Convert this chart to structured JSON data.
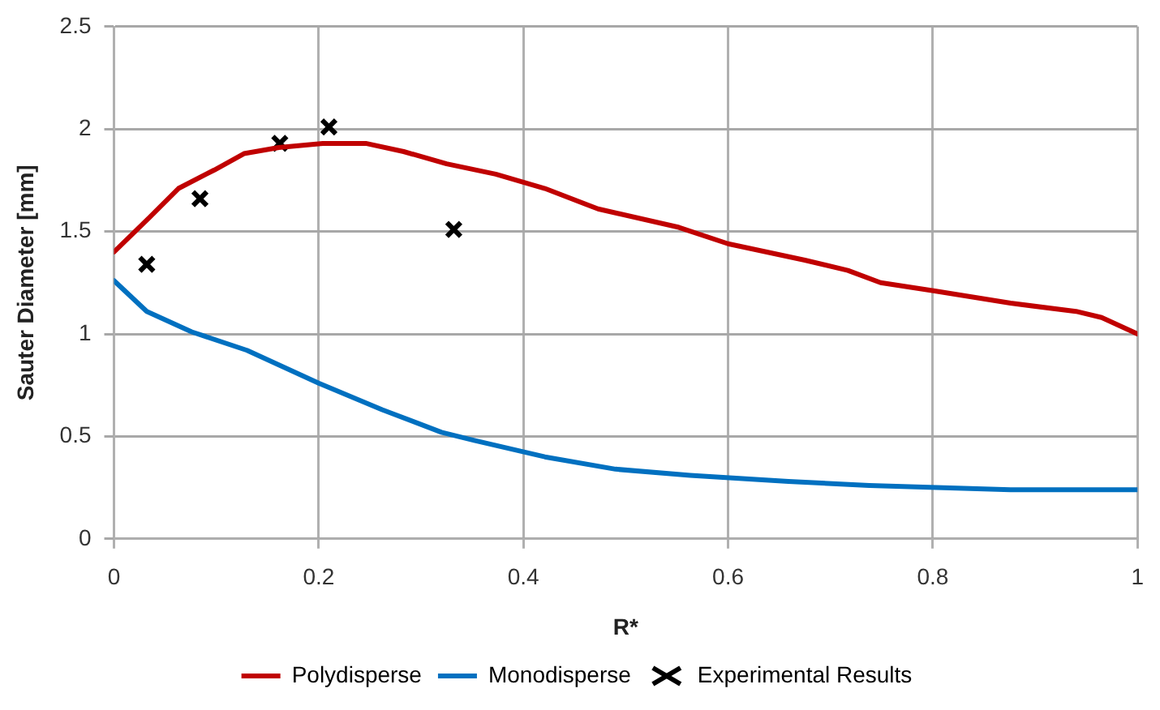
{
  "chart_data": {
    "type": "line",
    "xlabel": "R*",
    "ylabel": "Sauter Diameter [mm]",
    "xlim": [
      0,
      1
    ],
    "xticks": [
      0,
      0.2,
      0.4,
      0.6,
      0.8,
      1
    ],
    "ylim": [
      0,
      2.5
    ],
    "yticks": [
      0,
      0.5,
      1,
      1.5,
      2,
      2.5
    ],
    "grid": true,
    "legend": "bottom",
    "series": [
      {
        "name": "Polydisperse",
        "type": "line",
        "color": "#c00000",
        "marker": "none",
        "x": [
          0,
          0.035,
          0.063,
          0.098,
          0.127,
          0.161,
          0.204,
          0.246,
          0.283,
          0.325,
          0.373,
          0.421,
          0.473,
          0.552,
          0.6,
          0.675,
          0.717,
          0.749,
          0.802,
          0.876,
          0.94,
          0.965,
          1.0
        ],
        "values": [
          1.4,
          1.57,
          1.71,
          1.8,
          1.88,
          1.91,
          1.93,
          1.93,
          1.89,
          1.83,
          1.78,
          1.71,
          1.61,
          1.52,
          1.44,
          1.36,
          1.31,
          1.25,
          1.21,
          1.15,
          1.11,
          1.08,
          1.0
        ]
      },
      {
        "name": "Monodisperse",
        "type": "line",
        "color": "#0070c0",
        "marker": "none",
        "x": [
          0,
          0.032,
          0.076,
          0.13,
          0.2,
          0.262,
          0.32,
          0.352,
          0.421,
          0.49,
          0.563,
          0.659,
          0.738,
          0.876,
          1.0
        ],
        "values": [
          1.26,
          1.11,
          1.01,
          0.92,
          0.76,
          0.63,
          0.52,
          0.48,
          0.4,
          0.34,
          0.31,
          0.28,
          0.26,
          0.24,
          0.24
        ]
      },
      {
        "name": "Experimental Results",
        "type": "scatter",
        "color": "#000000",
        "marker": "cross",
        "x": [
          0.032,
          0.084,
          0.162,
          0.21,
          0.332
        ],
        "values": [
          1.34,
          1.66,
          1.93,
          2.01,
          1.51
        ]
      }
    ]
  }
}
